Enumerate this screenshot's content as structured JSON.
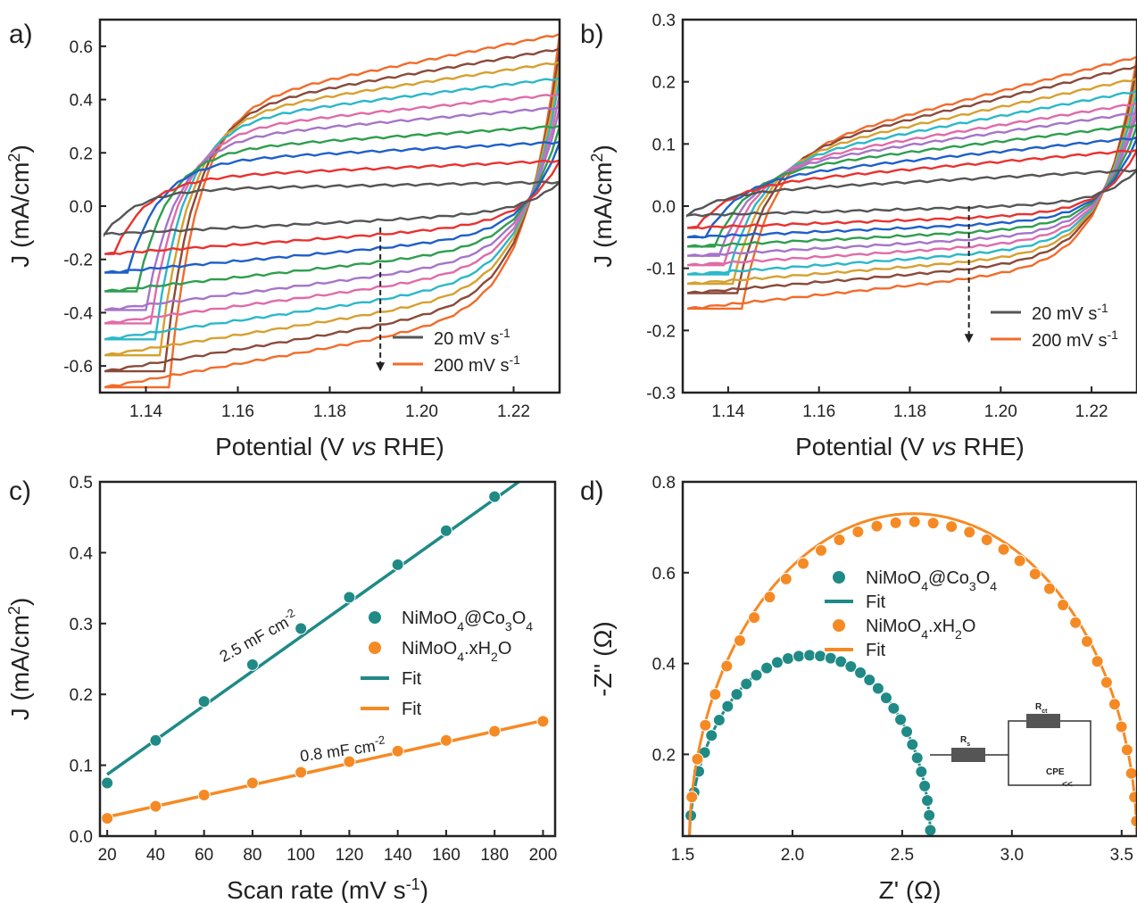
{
  "chart_data": [
    {
      "panel": "a)",
      "type": "line",
      "xlabel_parts": [
        "Potential (V ",
        "vs",
        " RHE)"
      ],
      "ylabel_parts": [
        "J (mA/cm",
        "2",
        ")"
      ],
      "xlim": [
        1.13,
        1.23
      ],
      "ylim": [
        -0.7,
        0.7
      ],
      "xticks": [
        "1.14",
        "1.16",
        "1.18",
        "1.20",
        "1.22"
      ],
      "yticks": [
        "-0.6",
        "-0.4",
        "-0.2",
        "0.0",
        "0.2",
        "0.4",
        "0.6"
      ],
      "xtick_values": [
        1.14,
        1.16,
        1.18,
        1.2,
        1.22
      ],
      "ytick_values": [
        -0.6,
        -0.4,
        -0.2,
        0.0,
        0.2,
        0.4,
        0.6
      ],
      "scan_rates": [
        20,
        40,
        60,
        80,
        100,
        120,
        140,
        160,
        180,
        200
      ],
      "colors": [
        "#555555",
        "#e8322f",
        "#1f5fc9",
        "#2e9e4e",
        "#a575c8",
        "#e06ba8",
        "#2bb8c8",
        "#d6a030",
        "#8a4a3a",
        "#8a9a30"
      ],
      "series": [
        {
          "scan_rate": 20,
          "anodic": {
            "x": [
              1.131,
              1.23
            ],
            "y": [
              0.06,
              0.09
            ]
          },
          "cathodic": {
            "x": [
              1.131,
              1.23
            ],
            "y": [
              -0.105,
              -0.02
            ]
          }
        },
        {
          "scan_rate": 40,
          "anodic": {
            "x": [
              1.133,
              1.23
            ],
            "y": [
              0.1,
              0.17
            ]
          },
          "cathodic": {
            "x": [
              1.131,
              1.23
            ],
            "y": [
              -0.18,
              -0.06
            ]
          }
        },
        {
          "scan_rate": 60,
          "anodic": {
            "x": [
              1.136,
              1.23
            ],
            "y": [
              0.16,
              0.24
            ]
          },
          "cathodic": {
            "x": [
              1.131,
              1.23
            ],
            "y": [
              -0.25,
              -0.1
            ]
          }
        },
        {
          "scan_rate": 80,
          "anodic": {
            "x": [
              1.138,
              1.23
            ],
            "y": [
              0.2,
              0.3
            ]
          },
          "cathodic": {
            "x": [
              1.131,
              1.23
            ],
            "y": [
              -0.32,
              -0.14
            ]
          }
        },
        {
          "scan_rate": 100,
          "anodic": {
            "x": [
              1.14,
              1.23
            ],
            "y": [
              0.24,
              0.37
            ]
          },
          "cathodic": {
            "x": [
              1.131,
              1.23
            ],
            "y": [
              -0.39,
              -0.18
            ]
          }
        },
        {
          "scan_rate": 120,
          "anodic": {
            "x": [
              1.141,
              1.23
            ],
            "y": [
              0.27,
              0.42
            ]
          },
          "cathodic": {
            "x": [
              1.131,
              1.23
            ],
            "y": [
              -0.44,
              -0.22
            ]
          }
        },
        {
          "scan_rate": 140,
          "anodic": {
            "x": [
              1.142,
              1.23
            ],
            "y": [
              0.3,
              0.48
            ]
          },
          "cathodic": {
            "x": [
              1.131,
              1.23
            ],
            "y": [
              -0.5,
              -0.26
            ]
          }
        },
        {
          "scan_rate": 160,
          "anodic": {
            "x": [
              1.143,
              1.23
            ],
            "y": [
              0.32,
              0.54
            ]
          },
          "cathodic": {
            "x": [
              1.131,
              1.23
            ],
            "y": [
              -0.56,
              -0.3
            ]
          }
        },
        {
          "scan_rate": 180,
          "anodic": {
            "x": [
              1.144,
              1.23
            ],
            "y": [
              0.34,
              0.59
            ]
          },
          "cathodic": {
            "x": [
              1.131,
              1.23
            ],
            "y": [
              -0.62,
              -0.34
            ]
          }
        },
        {
          "scan_rate": 200,
          "anodic": {
            "x": [
              1.145,
              1.23
            ],
            "y": [
              0.36,
              0.645
            ]
          },
          "cathodic": {
            "x": [
              1.131,
              1.23
            ],
            "y": [
              -0.68,
              -0.38
            ]
          }
        }
      ],
      "arrow": {
        "x": 1.191,
        "y_from": -0.08,
        "y_to": -0.62
      },
      "legend": [
        {
          "label": "20 mV s",
          "sup": "-1",
          "color": "#555555"
        },
        {
          "label": "200  mV s",
          "sup": "-1",
          "color": "#f26b2a"
        }
      ]
    },
    {
      "panel": "b)",
      "type": "line",
      "xlabel_parts": [
        "Potential (V ",
        "vs",
        " RHE)"
      ],
      "ylabel_parts": [
        "J (mA/cm",
        "2",
        ")"
      ],
      "xlim": [
        1.13,
        1.23
      ],
      "ylim": [
        -0.3,
        0.3
      ],
      "xticks": [
        "1.14",
        "1.16",
        "1.18",
        "1.20",
        "1.22"
      ],
      "yticks": [
        "-0.3",
        "-0.2",
        "-0.1",
        "0.0",
        "0.1",
        "0.2",
        "0.3"
      ],
      "xtick_values": [
        1.14,
        1.16,
        1.18,
        1.2,
        1.22
      ],
      "ytick_values": [
        -0.3,
        -0.2,
        -0.1,
        0.0,
        0.1,
        0.2,
        0.3
      ],
      "scan_rates": [
        20,
        40,
        60,
        80,
        100,
        120,
        140,
        160,
        180,
        200
      ],
      "colors": [
        "#555555",
        "#e8322f",
        "#1f5fc9",
        "#2e9e4e",
        "#a575c8",
        "#e06ba8",
        "#2bb8c8",
        "#d6a030",
        "#8a4a3a",
        "#8a9a30"
      ],
      "series": [
        {
          "scan_rate": 20,
          "anodic": {
            "x": [
              1.131,
              1.23
            ],
            "y": [
              0.02,
              0.058
            ]
          },
          "cathodic": {
            "x": [
              1.131,
              1.23
            ],
            "y": [
              -0.015,
              0.005
            ]
          }
        },
        {
          "scan_rate": 40,
          "anodic": {
            "x": [
              1.133,
              1.23
            ],
            "y": [
              0.03,
              0.09
            ]
          },
          "cathodic": {
            "x": [
              1.131,
              1.23
            ],
            "y": [
              -0.035,
              -0.01
            ]
          }
        },
        {
          "scan_rate": 60,
          "anodic": {
            "x": [
              1.135,
              1.23
            ],
            "y": [
              0.04,
              0.11
            ]
          },
          "cathodic": {
            "x": [
              1.131,
              1.23
            ],
            "y": [
              -0.05,
              -0.02
            ]
          }
        },
        {
          "scan_rate": 80,
          "anodic": {
            "x": [
              1.137,
              1.23
            ],
            "y": [
              0.05,
              0.13
            ]
          },
          "cathodic": {
            "x": [
              1.131,
              1.23
            ],
            "y": [
              -0.065,
              -0.03
            ]
          }
        },
        {
          "scan_rate": 100,
          "anodic": {
            "x": [
              1.138,
              1.23
            ],
            "y": [
              0.055,
              0.15
            ]
          },
          "cathodic": {
            "x": [
              1.131,
              1.23
            ],
            "y": [
              -0.08,
              -0.04
            ]
          }
        },
        {
          "scan_rate": 120,
          "anodic": {
            "x": [
              1.139,
              1.23
            ],
            "y": [
              0.06,
              0.165
            ]
          },
          "cathodic": {
            "x": [
              1.131,
              1.23
            ],
            "y": [
              -0.095,
              -0.05
            ]
          }
        },
        {
          "scan_rate": 140,
          "anodic": {
            "x": [
              1.14,
              1.23
            ],
            "y": [
              0.065,
              0.185
            ]
          },
          "cathodic": {
            "x": [
              1.131,
              1.23
            ],
            "y": [
              -0.11,
              -0.06
            ]
          }
        },
        {
          "scan_rate": 160,
          "anodic": {
            "x": [
              1.141,
              1.23
            ],
            "y": [
              0.07,
              0.205
            ]
          },
          "cathodic": {
            "x": [
              1.131,
              1.23
            ],
            "y": [
              -0.125,
              -0.07
            ]
          }
        },
        {
          "scan_rate": 180,
          "anodic": {
            "x": [
              1.142,
              1.23
            ],
            "y": [
              0.075,
              0.225
            ]
          },
          "cathodic": {
            "x": [
              1.131,
              1.23
            ],
            "y": [
              -0.14,
              -0.08
            ]
          }
        },
        {
          "scan_rate": 200,
          "anodic": {
            "x": [
              1.143,
              1.23
            ],
            "y": [
              0.08,
              0.24
            ]
          },
          "cathodic": {
            "x": [
              1.131,
              1.23
            ],
            "y": [
              -0.165,
              -0.09
            ]
          }
        }
      ],
      "arrow": {
        "x": 1.193,
        "y_from": 0.0,
        "y_to": -0.22
      },
      "legend": [
        {
          "label": "20 mV s",
          "sup": "-1",
          "color": "#555555"
        },
        {
          "label": "200  mV s",
          "sup": "-1",
          "color": "#f26b2a"
        }
      ]
    },
    {
      "panel": "c)",
      "type": "scatter",
      "xlabel_parts": [
        "Scan rate (mV s",
        "-1",
        ")"
      ],
      "ylabel_parts": [
        "J (mA/cm",
        "2",
        ")"
      ],
      "xlim": [
        17,
        205
      ],
      "ylim": [
        0.0,
        0.5
      ],
      "xticks": [
        "20",
        "40",
        "60",
        "80",
        "100",
        "120",
        "140",
        "160",
        "180",
        "200"
      ],
      "yticks": [
        "0.0",
        "0.1",
        "0.2",
        "0.3",
        "0.4",
        "0.5"
      ],
      "xtick_values": [
        20,
        40,
        60,
        80,
        100,
        120,
        140,
        160,
        180,
        200
      ],
      "ytick_values": [
        0.0,
        0.1,
        0.2,
        0.3,
        0.4,
        0.5
      ],
      "series": [
        {
          "name": "NiMoO4@Co3O4",
          "kind": "points",
          "color": "#1f8a86",
          "x": [
            20,
            40,
            60,
            80,
            100,
            120,
            140,
            160,
            180
          ],
          "y": [
            0.075,
            0.135,
            0.19,
            0.242,
            0.293,
            0.337,
            0.383,
            0.431,
            0.479
          ]
        },
        {
          "name": "NiMoO4.xH2O",
          "kind": "points",
          "color": "#f58a25",
          "x": [
            20,
            40,
            60,
            80,
            100,
            120,
            140,
            160,
            180,
            200
          ],
          "y": [
            0.025,
            0.042,
            0.058,
            0.075,
            0.09,
            0.105,
            0.12,
            0.135,
            0.148,
            0.162
          ]
        },
        {
          "name": "Fit",
          "kind": "line",
          "color": "#1f8a86",
          "x": [
            20,
            190
          ],
          "y": [
            0.087,
            0.5
          ]
        },
        {
          "name": "Fit",
          "kind": "line",
          "color": "#f58a25",
          "x": [
            20,
            200
          ],
          "y": [
            0.027,
            0.163
          ]
        }
      ],
      "annotations": [
        {
          "text": "2.5 mF cm",
          "sup": "-2",
          "x": 68,
          "y": 0.245
        },
        {
          "text": "0.8 mF cm",
          "sup": "-2",
          "x": 100,
          "y": 0.105
        }
      ],
      "legend": [
        {
          "label": "NiMoO",
          "sub1": "4",
          "mid": "@Co",
          "sub2": "3",
          "end": "O",
          "sub3": "4",
          "kind": "dot",
          "color": "#1f8a86"
        },
        {
          "label": "NiMoO",
          "sub1": "4",
          "mid": ".xH",
          "sub2": "2",
          "end": "O",
          "sub3": "",
          "kind": "dot",
          "color": "#f58a25"
        },
        {
          "label": "Fit",
          "kind": "line",
          "color": "#1f8a86"
        },
        {
          "label": "Fit",
          "kind": "line",
          "color": "#f58a25"
        }
      ]
    },
    {
      "panel": "d)",
      "type": "scatter",
      "xlabel_parts": [
        "Z' (Ω)"
      ],
      "ylabel_parts": [
        "-Z'' (Ω)"
      ],
      "xlim": [
        1.5,
        3.57
      ],
      "ylim": [
        0.02,
        0.8
      ],
      "xticks": [
        "1.5",
        "2.0",
        "2.5",
        "3.0",
        "3.5"
      ],
      "yticks": [
        "0.2",
        "0.4",
        "0.6",
        "0.8"
      ],
      "xtick_values": [
        1.5,
        2.0,
        2.5,
        3.0,
        3.5
      ],
      "ytick_values": [
        0.2,
        0.4,
        0.6,
        0.8
      ],
      "series": [
        {
          "name": "NiMoO4@Co3O4",
          "kind": "semicircle",
          "color": "#1f8a86",
          "center_x": 2.08,
          "radius_x": 0.55,
          "peak_y": 0.418,
          "points": 34
        },
        {
          "name": "NiMoO4.xH2O",
          "kind": "semicircle",
          "color": "#f58a25",
          "center_x": 2.55,
          "radius_x": 1.02,
          "peak_y": 0.712,
          "points": 36
        }
      ],
      "legend": [
        {
          "label": "NiMoO",
          "sub1": "4",
          "mid": "@Co",
          "sub2": "3",
          "end": "O",
          "sub3": "4",
          "kind": "dot",
          "color": "#1f8a86"
        },
        {
          "label": "Fit",
          "kind": "line",
          "color": "#1f8a86"
        },
        {
          "label": "NiMoO",
          "sub1": "4",
          "mid": ".xH",
          "sub2": "2",
          "end": "O",
          "sub3": "",
          "kind": "dot",
          "color": "#f58a25"
        },
        {
          "label": "Fit",
          "kind": "line",
          "color": "#f58a25"
        }
      ],
      "circuit": {
        "rs": "R",
        "rs_sub": "s",
        "rct": "R",
        "rct_sub": "ct",
        "cpe": "CPE"
      }
    }
  ]
}
